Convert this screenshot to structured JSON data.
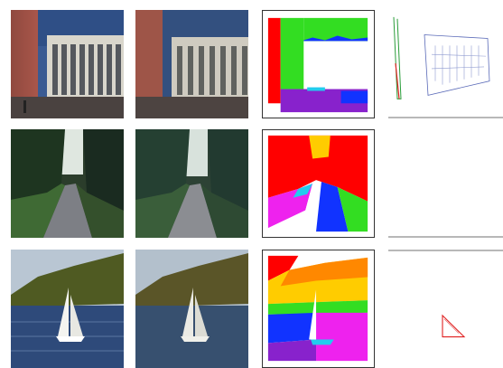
{
  "figure": {
    "rows": [
      {
        "name": "building",
        "panels": [
          "original",
          "smoothed",
          "segmentation",
          "edges"
        ]
      },
      {
        "name": "forest-path",
        "panels": [
          "original",
          "smoothed",
          "segmentation",
          "edges"
        ]
      },
      {
        "name": "sailboat",
        "panels": [
          "original",
          "smoothed",
          "segmentation",
          "edges"
        ]
      }
    ],
    "colors": {
      "sky_blue": "#2f4f86",
      "brick": "#a9564a",
      "facade": "#d9d6cc",
      "forest_dark": "#233423",
      "grass": "#3f6a34",
      "water": "#2e4a7a",
      "seg_red": "#ff0000",
      "seg_green": "#33dd22",
      "seg_yellow": "#ffcc00",
      "seg_blue": "#1133ff",
      "seg_magenta": "#ee22ee",
      "seg_purple": "#8822cc",
      "seg_orange": "#ff8800",
      "seg_cyan": "#22ccee"
    }
  }
}
